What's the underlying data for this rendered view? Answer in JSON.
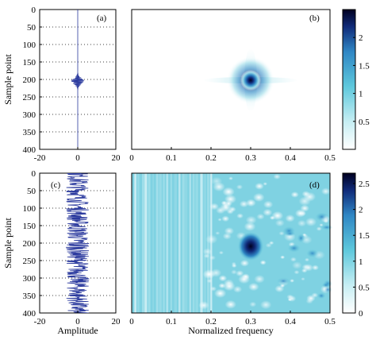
{
  "panels": {
    "a": {
      "label": "(a)"
    },
    "b": {
      "label": "(b)"
    },
    "c": {
      "label": "(c)"
    },
    "d": {
      "label": "(d)"
    }
  },
  "axes": {
    "sample_label": "Sample point",
    "amplitude_label": "Amplitude",
    "frequency_label": "Normalized frequency",
    "sample_ticks": [
      "0",
      "50",
      "100",
      "150",
      "200",
      "250",
      "300",
      "350",
      "400"
    ],
    "amplitude_ticks": [
      "-20",
      "0",
      "20"
    ],
    "frequency_ticks": [
      "0",
      "0.1",
      "0.2",
      "0.3",
      "0.4",
      "0.5"
    ],
    "colorbar_top_ticks": [
      "0.5",
      "1",
      "1.5",
      "2"
    ],
    "colorbar_bottom_ticks": [
      "0",
      "0.5",
      "1",
      "1.5",
      "2",
      "2.5"
    ]
  },
  "colors": {
    "trace": "#2b3a9e",
    "colormap": [
      "#ffffff",
      "#c6eef3",
      "#5ec8dc",
      "#2f86c4",
      "#102a78",
      "#000020"
    ]
  },
  "chart_data": [
    {
      "type": "line",
      "panel": "a",
      "description_source": "wavelet-like signal trace",
      "x_range": [
        -20,
        20
      ],
      "y_range": [
        0,
        400
      ],
      "y_inverted": true,
      "center_sample": 205,
      "peak_amplitude": 4,
      "grid": "dotted"
    },
    {
      "type": "heatmap",
      "panel": "b",
      "x_range": [
        0,
        0.5
      ],
      "y_range": [
        0,
        400
      ],
      "y_inverted": true,
      "peak": {
        "frequency": 0.3,
        "sample": 205,
        "value": 2.4
      },
      "colorbar_range": [
        0,
        2.5
      ]
    },
    {
      "type": "line",
      "panel": "c",
      "x_range": [
        -20,
        20
      ],
      "y_range": [
        0,
        400
      ],
      "y_inverted": true,
      "noise_amplitude": 6,
      "grid": "dotted"
    },
    {
      "type": "heatmap",
      "panel": "d",
      "x_range": [
        0,
        0.5
      ],
      "y_range": [
        0,
        400
      ],
      "y_inverted": true,
      "peak": {
        "frequency": 0.3,
        "sample": 210,
        "value": 2.6
      },
      "colorbar_range": [
        0,
        2.7
      ]
    }
  ]
}
